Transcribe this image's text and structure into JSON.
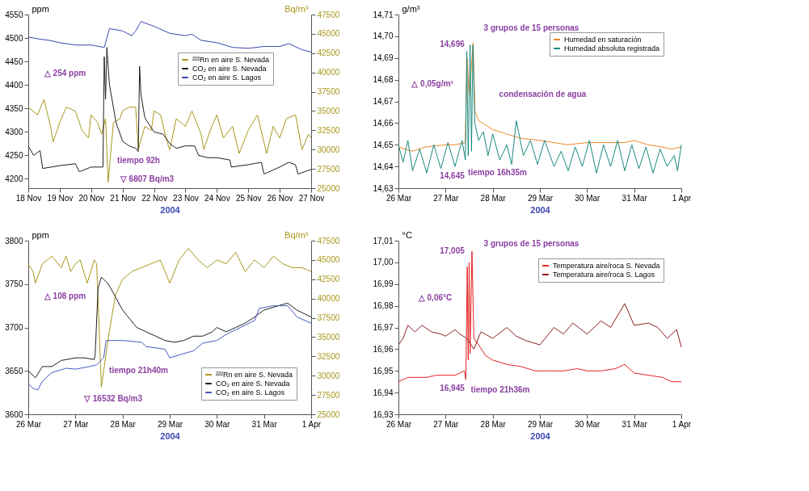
{
  "chart_data": [
    {
      "type": "line",
      "xlabel": "2004",
      "ylabel": "ppm",
      "y2label": "Bq/m³",
      "legend": "right",
      "xlim": [
        "2004-11-18T00:00",
        "2004-11-27T00:00"
      ],
      "xticks": [
        {
          "value": "2004-11-18",
          "label": "18 Nov"
        },
        {
          "value": "2004-11-19",
          "label": "19 Nov"
        },
        {
          "value": "2004-11-20",
          "label": "20 Nov"
        },
        {
          "value": "2004-11-21",
          "label": "21 Nov"
        },
        {
          "value": "2004-11-22",
          "label": "22 Nov"
        },
        {
          "value": "2004-11-23",
          "label": "23 Nov"
        },
        {
          "value": "2004-11-24",
          "label": "24 Nov"
        },
        {
          "value": "2004-11-25",
          "label": "25 Nov"
        },
        {
          "value": "2004-11-26",
          "label": "26 Nov"
        },
        {
          "value": "2004-11-27",
          "label": "27 Nov"
        }
      ],
      "ylim": [
        4180,
        4550
      ],
      "yticks": [
        4200,
        4250,
        4300,
        4350,
        4400,
        4450,
        4500,
        4550
      ],
      "y2lim": [
        25000,
        47500
      ],
      "y2ticks": [
        25000,
        27500,
        30000,
        32500,
        35000,
        37500,
        40000,
        42500,
        45000,
        47500
      ],
      "series": [
        {
          "name": "²²²Rn en aire S. Nevada",
          "color": "#a8981c",
          "axis": "y2",
          "x": [
            "2004-11-18T00:00",
            "2004-11-18T07:00",
            "2004-11-18T12:00",
            "2004-11-18T17:00",
            "2004-11-18T19:00",
            "2004-11-19T00:00",
            "2004-11-19T05:00",
            "2004-11-19T12:00",
            "2004-11-19T17:00",
            "2004-11-19T22:00",
            "2004-11-20T00:00",
            "2004-11-20T05:00",
            "2004-11-20T08:00",
            "2004-11-20T11:00",
            "2004-11-20T13:00",
            "2004-11-20T17:00",
            "2004-11-20T22:00",
            "2004-11-21T00:00",
            "2004-11-21T05:00",
            "2004-11-21T10:00",
            "2004-11-21T12:00",
            "2004-11-21T17:00",
            "2004-11-21T22:00",
            "2004-11-22T00:00",
            "2004-11-22T05:00",
            "2004-11-22T10:00",
            "2004-11-22T12:00",
            "2004-11-22T17:00",
            "2004-11-23T00:00",
            "2004-11-23T05:00",
            "2004-11-23T12:00",
            "2004-11-23T14:00",
            "2004-11-23T19:00",
            "2004-11-24T00:00",
            "2004-11-24T05:00",
            "2004-11-24T12:00",
            "2004-11-24T17:00",
            "2004-11-25T00:00",
            "2004-11-25T07:00",
            "2004-11-25T14:00",
            "2004-11-25T19:00",
            "2004-11-26T00:00",
            "2004-11-26T05:00",
            "2004-11-26T12:00",
            "2004-11-26T17:00",
            "2004-11-26T22:00",
            "2004-11-27T00:00"
          ],
          "values": [
            35500,
            34500,
            36500,
            33000,
            31000,
            33500,
            35500,
            35000,
            32500,
            31500,
            34500,
            33500,
            32000,
            34000,
            25800,
            33500,
            34000,
            35000,
            35500,
            35500,
            30000,
            33000,
            32500,
            35000,
            34500,
            31000,
            30000,
            34000,
            33000,
            35000,
            32000,
            30000,
            32500,
            34500,
            31500,
            33000,
            29500,
            32500,
            34500,
            29500,
            33000,
            31500,
            34000,
            34500,
            30000,
            32000,
            31500
          ]
        },
        {
          "name": "CO₂ en aire S. Nevada",
          "color": "#202020",
          "x": [
            "2004-11-18T00:00",
            "2004-11-18T04:00",
            "2004-11-18T09:00",
            "2004-11-18T11:00",
            "2004-11-19T00:00",
            "2004-11-19T12:00",
            "2004-11-19T15:00",
            "2004-11-20T00:00",
            "2004-11-20T09:00",
            "2004-11-20T10:00",
            "2004-11-20T11:00",
            "2004-11-20T12:00",
            "2004-11-20T14:00",
            "2004-11-20T19:00",
            "2004-11-21T00:00",
            "2004-11-21T05:00",
            "2004-11-21T10:00",
            "2004-11-21T12:00",
            "2004-11-21T13:00",
            "2004-11-21T14:00",
            "2004-11-21T17:00",
            "2004-11-22T00:00",
            "2004-11-22T07:00",
            "2004-11-22T12:00",
            "2004-11-22T17:00",
            "2004-11-23T00:00",
            "2004-11-23T07:00",
            "2004-11-23T10:00",
            "2004-11-23T17:00",
            "2004-11-24T00:00",
            "2004-11-24T10:00",
            "2004-11-24T11:00",
            "2004-11-25T00:00",
            "2004-11-25T10:00",
            "2004-11-25T12:00",
            "2004-11-26T00:00",
            "2004-11-26T07:00",
            "2004-11-26T12:00",
            "2004-11-26T14:00",
            "2004-11-27T00:00"
          ],
          "values": [
            4270,
            4250,
            4260,
            4222,
            4228,
            4232,
            4215,
            4225,
            4225,
            4460,
            4370,
            4480,
            4400,
            4320,
            4280,
            4270,
            4265,
            4258,
            4440,
            4380,
            4330,
            4300,
            4295,
            4275,
            4265,
            4270,
            4270,
            4250,
            4245,
            4245,
            4240,
            4225,
            4230,
            4235,
            4210,
            4225,
            4235,
            4230,
            4210,
            4220
          ]
        },
        {
          "name": "CO₂ en aire S. Lagos",
          "color": "#3848b0",
          "x": [
            "2004-11-18T00:00",
            "2004-11-18T08:00",
            "2004-11-18T16:00",
            "2004-11-19T00:00",
            "2004-11-19T12:00",
            "2004-11-20T00:00",
            "2004-11-20T10:00",
            "2004-11-20T14:00",
            "2004-11-21T00:00",
            "2004-11-21T07:00",
            "2004-11-21T10:00",
            "2004-11-21T14:00",
            "2004-11-22T00:00",
            "2004-11-22T12:00",
            "2004-11-23T00:00",
            "2004-11-23T05:00",
            "2004-11-23T12:00",
            "2004-11-24T00:00",
            "2004-11-24T12:00",
            "2004-11-25T00:00",
            "2004-11-25T12:00",
            "2004-11-26T00:00",
            "2004-11-26T07:00",
            "2004-11-26T17:00",
            "2004-11-27T00:00"
          ],
          "values": [
            4502,
            4498,
            4495,
            4490,
            4485,
            4485,
            4480,
            4520,
            4515,
            4505,
            4515,
            4535,
            4525,
            4510,
            4505,
            4508,
            4495,
            4490,
            4480,
            4478,
            4482,
            4482,
            4488,
            4475,
            4470
          ]
        }
      ],
      "annotations": [
        "△ 254 ppm",
        "tiempo 92h",
        "▽ 6807 Bq/m3"
      ]
    },
    {
      "type": "line",
      "xlabel": "2004",
      "ylabel": "g/m³",
      "legend": "top right",
      "xlim": [
        "2004-03-26T00:00",
        "2004-04-01T00:00"
      ],
      "xticks": [
        {
          "value": "2004-03-26",
          "label": "26 Mar"
        },
        {
          "value": "2004-03-27",
          "label": "27 Mar"
        },
        {
          "value": "2004-03-28",
          "label": "28 Mar"
        },
        {
          "value": "2004-03-29",
          "label": "29 Mar"
        },
        {
          "value": "2004-03-30",
          "label": "30 Mar"
        },
        {
          "value": "2004-03-31",
          "label": "31 Mar"
        },
        {
          "value": "2004-04-01",
          "label": "1 Apr"
        }
      ],
      "ylim": [
        14.63,
        14.71
      ],
      "yticks": [
        {
          "value": 14.63,
          "label": "14,63"
        },
        {
          "value": 14.64,
          "label": "14,64"
        },
        {
          "value": 14.65,
          "label": "14,65"
        },
        {
          "value": 14.66,
          "label": "14,66"
        },
        {
          "value": 14.67,
          "label": "14,67"
        },
        {
          "value": 14.68,
          "label": "14,68"
        },
        {
          "value": 14.69,
          "label": "14,69"
        },
        {
          "value": 14.7,
          "label": "14,70"
        },
        {
          "value": 14.71,
          "label": "14,71"
        }
      ],
      "series": [
        {
          "name": "Humedad en saturación",
          "color": "#f0862a",
          "x": [
            "2004-03-26T00:00",
            "2004-03-26T07:00",
            "2004-03-26T14:00",
            "2004-03-27T00:00",
            "2004-03-27T05:00",
            "2004-03-27T10:00",
            "2004-03-27T11:00",
            "2004-03-27T12:00",
            "2004-03-27T14:00",
            "2004-03-27T15:00",
            "2004-03-27T17:00",
            "2004-03-28T00:00",
            "2004-03-28T07:00",
            "2004-03-28T14:00",
            "2004-03-29T00:00",
            "2004-03-29T07:00",
            "2004-03-29T14:00",
            "2004-03-30T00:00",
            "2004-03-30T12:00",
            "2004-03-30T19:00",
            "2004-03-31T00:00",
            "2004-03-31T07:00",
            "2004-03-31T14:00",
            "2004-03-31T19:00",
            "2004-04-01T00:00"
          ],
          "values": [
            14.649,
            14.647,
            14.649,
            14.65,
            14.65,
            14.651,
            14.69,
            14.672,
            14.697,
            14.665,
            14.661,
            14.657,
            14.655,
            14.653,
            14.652,
            14.651,
            14.65,
            14.651,
            14.651,
            14.651,
            14.652,
            14.65,
            14.649,
            14.648,
            14.649
          ]
        },
        {
          "name": "Humedad absoluta registrada",
          "color": "#1a8a80",
          "x": [
            "2004-03-26T00:00",
            "2004-03-26T02:24",
            "2004-03-26T04:48",
            "2004-03-26T07:12",
            "2004-03-26T10:48",
            "2004-03-26T14:24",
            "2004-03-26T18:00",
            "2004-03-26T21:36",
            "2004-03-27T01:12",
            "2004-03-27T04:48",
            "2004-03-27T08:24",
            "2004-03-27T10:05",
            "2004-03-27T10:48",
            "2004-03-27T11:31",
            "2004-03-27T12:29",
            "2004-03-27T13:12",
            "2004-03-27T13:55",
            "2004-03-27T14:53",
            "2004-03-27T16:48",
            "2004-03-27T19:12",
            "2004-03-27T21:36",
            "2004-03-28T00:00",
            "2004-03-28T03:36",
            "2004-03-28T07:12",
            "2004-03-28T09:36",
            "2004-03-28T12:00",
            "2004-03-28T15:36",
            "2004-03-28T19:12",
            "2004-03-28T22:48",
            "2004-03-29T02:24",
            "2004-03-29T07:12",
            "2004-03-29T10:48",
            "2004-03-29T14:24",
            "2004-03-29T18:00",
            "2004-03-29T21:36",
            "2004-03-30T01:12",
            "2004-03-30T04:48",
            "2004-03-30T08:24",
            "2004-03-30T12:00",
            "2004-03-30T15:36",
            "2004-03-30T19:12",
            "2004-03-30T22:48",
            "2004-03-31T02:24",
            "2004-03-31T06:00",
            "2004-03-31T09:36",
            "2004-03-31T13:12",
            "2004-03-31T16:48",
            "2004-03-31T20:24",
            "2004-03-31T22:05",
            "2004-04-01T00:00"
          ],
          "values": [
            14.65,
            14.642,
            14.652,
            14.638,
            14.648,
            14.637,
            14.65,
            14.639,
            14.651,
            14.64,
            14.652,
            14.643,
            14.693,
            14.645,
            14.696,
            14.647,
            14.696,
            14.66,
            14.652,
            14.656,
            14.645,
            14.655,
            14.643,
            14.65,
            14.641,
            14.661,
            14.645,
            14.652,
            14.641,
            14.652,
            14.64,
            14.647,
            14.638,
            14.649,
            14.64,
            14.652,
            14.637,
            14.65,
            14.64,
            14.652,
            14.638,
            14.65,
            14.639,
            14.649,
            14.637,
            14.648,
            14.64,
            14.645,
            14.638,
            14.65
          ]
        }
      ],
      "annotations": [
        "3 grupos de 15 personas",
        "14,696",
        "△ 0,05g/m³",
        "condensación de agua",
        "tiempo 16h35m",
        "14,645"
      ]
    },
    {
      "type": "line",
      "xlabel": "2004",
      "ylabel": "ppm",
      "y2label": "Bq/m³",
      "legend": "bottom right",
      "xlim": [
        "2004-03-26T00:00",
        "2004-04-01T00:00"
      ],
      "xticks": [
        {
          "value": "2004-03-26",
          "label": "26 Mar"
        },
        {
          "value": "2004-03-27",
          "label": "27 Mar"
        },
        {
          "value": "2004-03-28",
          "label": "28 Mar"
        },
        {
          "value": "2004-03-29",
          "label": "29 Mar"
        },
        {
          "value": "2004-03-30",
          "label": "30 Mar"
        },
        {
          "value": "2004-03-31",
          "label": "31 Mar"
        },
        {
          "value": "2004-04-01",
          "label": "1 Apr"
        }
      ],
      "ylim": [
        3600,
        3800
      ],
      "yticks": [
        3600,
        3650,
        3700,
        3750,
        3800
      ],
      "y2lim": [
        25000,
        47500
      ],
      "y2ticks": [
        25000,
        27500,
        30000,
        32500,
        35000,
        37500,
        40000,
        42500,
        45000,
        47500
      ],
      "series": [
        {
          "name": "²²²Rn en aire S. Nevada",
          "color": "#a8981c",
          "axis": "y2",
          "x": [
            "2004-03-26T00:00",
            "2004-03-26T02:24",
            "2004-03-26T03:36",
            "2004-03-26T07:12",
            "2004-03-26T12:00",
            "2004-03-26T16:48",
            "2004-03-26T19:12",
            "2004-03-26T21:36",
            "2004-03-27T00:00",
            "2004-03-27T02:24",
            "2004-03-27T06:00",
            "2004-03-27T09:36",
            "2004-03-27T10:48",
            "2004-03-27T13:12",
            "2004-03-27T16:48",
            "2004-03-27T20:24",
            "2004-03-28T00:00",
            "2004-03-28T04:48",
            "2004-03-28T09:36",
            "2004-03-28T14:24",
            "2004-03-28T19:12",
            "2004-03-29T00:00",
            "2004-03-29T04:48",
            "2004-03-29T09:36",
            "2004-03-29T14:24",
            "2004-03-29T19:12",
            "2004-03-30T00:00",
            "2004-03-30T04:48",
            "2004-03-30T09:36",
            "2004-03-30T14:24",
            "2004-03-30T19:12",
            "2004-03-31T00:00",
            "2004-03-31T04:48",
            "2004-03-31T09:36",
            "2004-03-31T14:24",
            "2004-03-31T19:12",
            "2004-04-01T00:00"
          ],
          "values": [
            44500,
            43500,
            42000,
            44500,
            45500,
            44000,
            45500,
            43500,
            44500,
            45000,
            42000,
            45000,
            44500,
            28500,
            35000,
            40500,
            42500,
            43500,
            44000,
            44500,
            45000,
            42000,
            45000,
            46500,
            45000,
            44000,
            45000,
            44500,
            46000,
            43500,
            45000,
            44000,
            45500,
            44500,
            44000,
            44000,
            43500
          ]
        },
        {
          "name": "CO₂ en aire S. Nevada",
          "color": "#202020",
          "x": [
            "2004-03-26T00:00",
            "2004-03-26T03:36",
            "2004-03-26T07:12",
            "2004-03-26T12:00",
            "2004-03-26T16:48",
            "2004-03-27T00:00",
            "2004-03-27T04:48",
            "2004-03-27T09:36",
            "2004-03-27T10:05",
            "2004-03-27T11:31",
            "2004-03-27T13:12",
            "2004-03-27T16:48",
            "2004-03-27T20:24",
            "2004-03-28T00:00",
            "2004-03-28T03:36",
            "2004-03-28T07:12",
            "2004-03-28T12:00",
            "2004-03-28T16:48",
            "2004-03-28T21:36",
            "2004-03-29T02:24",
            "2004-03-29T07:12",
            "2004-03-29T12:00",
            "2004-03-29T16:48",
            "2004-03-29T21:36",
            "2004-03-30T00:00",
            "2004-03-30T04:48",
            "2004-03-30T09:36",
            "2004-03-30T14:24",
            "2004-03-30T19:12",
            "2004-03-31T00:00",
            "2004-03-31T07:12",
            "2004-03-31T12:00",
            "2004-03-31T16:48",
            "2004-04-01T00:00"
          ],
          "values": [
            3650,
            3642,
            3655,
            3655,
            3662,
            3665,
            3665,
            3663,
            3670,
            3745,
            3758,
            3750,
            3735,
            3720,
            3710,
            3700,
            3695,
            3690,
            3685,
            3683,
            3685,
            3690,
            3690,
            3695,
            3700,
            3695,
            3700,
            3705,
            3712,
            3720,
            3725,
            3728,
            3720,
            3712
          ]
        },
        {
          "name": "CO₂ en aire S. Lagos",
          "color": "#4858c0",
          "x": [
            "2004-03-26T00:00",
            "2004-03-26T02:24",
            "2004-03-26T04:48",
            "2004-03-26T07:12",
            "2004-03-26T12:00",
            "2004-03-26T19:12",
            "2004-03-27T00:00",
            "2004-03-27T07:12",
            "2004-03-27T10:48",
            "2004-03-27T14:24",
            "2004-03-27T15:36",
            "2004-03-28T00:00",
            "2004-03-28T09:36",
            "2004-03-28T12:00",
            "2004-03-28T21:36",
            "2004-03-29T00:00",
            "2004-03-29T07:12",
            "2004-03-29T12:00",
            "2004-03-29T16:48",
            "2004-03-30T00:00",
            "2004-03-30T04:48",
            "2004-03-30T12:00",
            "2004-03-30T19:12",
            "2004-03-30T21:36",
            "2004-03-31T04:48",
            "2004-03-31T12:00",
            "2004-03-31T16:48",
            "2004-04-01T00:00"
          ],
          "values": [
            3635,
            3630,
            3628,
            3638,
            3648,
            3653,
            3652,
            3655,
            3657,
            3665,
            3685,
            3685,
            3683,
            3678,
            3675,
            3665,
            3670,
            3673,
            3682,
            3685,
            3692,
            3700,
            3708,
            3722,
            3725,
            3725,
            3712,
            3705
          ]
        }
      ],
      "annotations": [
        "△ 108 ppm",
        "tiempo 21h40m",
        "▽ 16532 Bq/m3"
      ]
    },
    {
      "type": "line",
      "xlabel": "2004",
      "ylabel": "°C",
      "legend": "top right",
      "xlim": [
        "2004-03-26T00:00",
        "2004-04-01T00:00"
      ],
      "xticks": [
        {
          "value": "2004-03-26",
          "label": "26 Mar"
        },
        {
          "value": "2004-03-27",
          "label": "27 Mar"
        },
        {
          "value": "2004-03-28",
          "label": "28 Mar"
        },
        {
          "value": "2004-03-29",
          "label": "29 Mar"
        },
        {
          "value": "2004-03-30",
          "label": "30 Mar"
        },
        {
          "value": "2004-03-31",
          "label": "31 Mar"
        },
        {
          "value": "2004-04-01",
          "label": "1 Apr"
        }
      ],
      "ylim": [
        16.93,
        17.01
      ],
      "yticks": [
        {
          "value": 16.93,
          "label": "16,93"
        },
        {
          "value": 16.94,
          "label": "16,94"
        },
        {
          "value": 16.95,
          "label": "16,95"
        },
        {
          "value": 16.96,
          "label": "16,96"
        },
        {
          "value": 16.97,
          "label": "16,97"
        },
        {
          "value": 16.98,
          "label": "16,98"
        },
        {
          "value": 16.99,
          "label": "16,99"
        },
        {
          "value": 17.0,
          "label": "17,00"
        },
        {
          "value": 17.01,
          "label": "17,01"
        }
      ],
      "series": [
        {
          "name": "Temperatura aire/roca S. Nevada",
          "color": "#e42222",
          "x": [
            "2004-03-26T00:00",
            "2004-03-26T04:48",
            "2004-03-26T09:36",
            "2004-03-26T14:24",
            "2004-03-26T19:12",
            "2004-03-27T00:00",
            "2004-03-27T04:48",
            "2004-03-27T09:36",
            "2004-03-27T10:19",
            "2004-03-27T11:02",
            "2004-03-27T11:31",
            "2004-03-27T12:00",
            "2004-03-27T12:29",
            "2004-03-27T13:26",
            "2004-03-27T14:24",
            "2004-03-27T16:48",
            "2004-03-27T20:24",
            "2004-03-28T00:00",
            "2004-03-28T07:12",
            "2004-03-28T14:24",
            "2004-03-28T21:36",
            "2004-03-29T04:48",
            "2004-03-29T12:00",
            "2004-03-29T19:12",
            "2004-03-30T00:00",
            "2004-03-30T07:12",
            "2004-03-30T14:24",
            "2004-03-30T19:12",
            "2004-03-31T00:00",
            "2004-03-31T07:12",
            "2004-03-31T14:24",
            "2004-03-31T19:12",
            "2004-04-01T00:00"
          ],
          "values": [
            16.945,
            16.947,
            16.947,
            16.947,
            16.948,
            16.948,
            16.948,
            16.95,
            16.946,
            16.998,
            16.955,
            17.0,
            16.958,
            17.005,
            16.965,
            16.962,
            16.957,
            16.955,
            16.953,
            16.952,
            16.95,
            16.95,
            16.95,
            16.951,
            16.95,
            16.95,
            16.951,
            16.953,
            16.949,
            16.948,
            16.947,
            16.945,
            16.945
          ]
        },
        {
          "name": "Temperatura aire/roca S. Lagos",
          "color": "#8c1f1f",
          "x": [
            "2004-03-26T00:00",
            "2004-03-26T02:24",
            "2004-03-26T04:48",
            "2004-03-26T08:24",
            "2004-03-26T12:00",
            "2004-03-26T16:48",
            "2004-03-26T21:36",
            "2004-03-27T00:00",
            "2004-03-27T04:48",
            "2004-03-27T07:12",
            "2004-03-27T10:48",
            "2004-03-27T14:24",
            "2004-03-27T18:00",
            "2004-03-28T00:00",
            "2004-03-28T07:12",
            "2004-03-28T12:00",
            "2004-03-28T16:48",
            "2004-03-29T00:00",
            "2004-03-29T07:12",
            "2004-03-29T12:00",
            "2004-03-29T16:48",
            "2004-03-30T00:00",
            "2004-03-30T07:12",
            "2004-03-30T12:00",
            "2004-03-30T19:12",
            "2004-03-31T00:00",
            "2004-03-31T07:12",
            "2004-03-31T12:00",
            "2004-03-31T16:48",
            "2004-03-31T21:36",
            "2004-04-01T00:00"
          ],
          "values": [
            16.962,
            16.965,
            16.971,
            16.968,
            16.971,
            16.968,
            16.967,
            16.966,
            16.969,
            16.967,
            16.965,
            16.96,
            16.968,
            16.965,
            16.97,
            16.966,
            16.964,
            16.962,
            16.97,
            16.967,
            16.972,
            16.967,
            16.973,
            16.97,
            16.981,
            16.971,
            16.972,
            16.97,
            16.965,
            16.969,
            16.961
          ]
        }
      ],
      "annotations": [
        "3 grupos de 15 personas",
        "17,005",
        "△ 0,06°C",
        "tiempo 21h36m",
        "16,945"
      ]
    }
  ]
}
